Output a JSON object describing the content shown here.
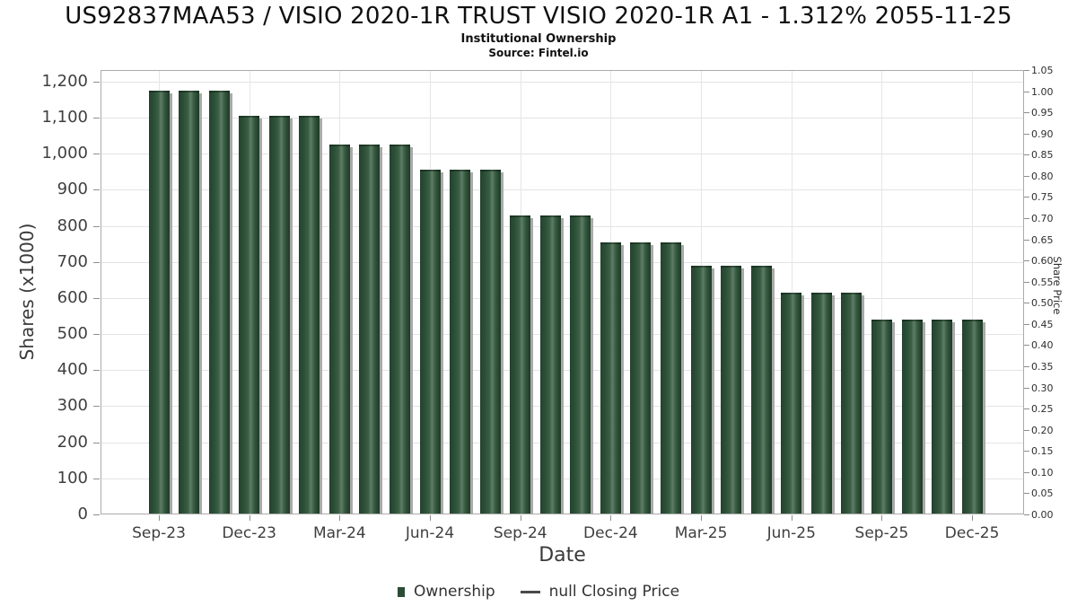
{
  "header": {
    "title": "US92837MAA53 / VISIO 2020-1R TRUST VISIO 2020-1R A1 - 1.312% 2055-11-25",
    "subtitle": "Institutional Ownership",
    "source": "Source: Fintel.io"
  },
  "chart_data": {
    "type": "bar",
    "title": "US92837MAA53 / VISIO 2020-1R TRUST VISIO 2020-1R A1 - 1.312% 2055-11-25",
    "subtitle": "Institutional Ownership",
    "source": "Source: Fintel.io",
    "xlabel": "Date",
    "ylabel": "Shares (x1000)",
    "ylabel_right": "Share Price",
    "x": [
      "Sep-23",
      "Oct-23",
      "Nov-23",
      "Dec-23",
      "Jan-24",
      "Feb-24",
      "Mar-24",
      "Apr-24",
      "May-24",
      "Jun-24",
      "Jul-24",
      "Aug-24",
      "Sep-24",
      "Oct-24",
      "Nov-24",
      "Dec-24",
      "Jan-25",
      "Feb-25",
      "Mar-25",
      "Apr-25",
      "May-25",
      "Jun-25",
      "Jul-25",
      "Aug-25",
      "Sep-25",
      "Oct-25",
      "Nov-25",
      "Dec-25"
    ],
    "series": [
      {
        "name": "Ownership",
        "values": [
          1175,
          1175,
          1175,
          1105,
          1105,
          1105,
          1025,
          1025,
          1025,
          955,
          955,
          955,
          830,
          830,
          830,
          755,
          755,
          755,
          690,
          690,
          690,
          615,
          615,
          615,
          540,
          540,
          540,
          540
        ]
      },
      {
        "name": "null Closing Price",
        "values": null
      }
    ],
    "ylim": [
      0,
      1232
    ],
    "yticks": [
      0,
      100,
      200,
      300,
      400,
      500,
      600,
      700,
      800,
      900,
      1000,
      1100,
      1200
    ],
    "ytick_labels": [
      "0",
      "100",
      "200",
      "300",
      "400",
      "500",
      "600",
      "700",
      "800",
      "900",
      "1,000",
      "1,100",
      "1,200"
    ],
    "ylim_right": [
      0,
      1.05
    ],
    "ytick_labels_right": [
      "0.00",
      "0.05",
      "0.10",
      "0.15",
      "0.20",
      "0.25",
      "0.30",
      "0.35",
      "0.40",
      "0.45",
      "0.50",
      "0.55",
      "0.60",
      "0.65",
      "0.70",
      "0.75",
      "0.80",
      "0.85",
      "0.90",
      "0.95",
      "1.00",
      "1.05"
    ],
    "xticks": [
      {
        "label": "Sep-23",
        "month": 0
      },
      {
        "label": "Dec-23",
        "month": 3
      },
      {
        "label": "Mar-24",
        "month": 6
      },
      {
        "label": "Jun-24",
        "month": 9
      },
      {
        "label": "Sep-24",
        "month": 12
      },
      {
        "label": "Dec-24",
        "month": 15
      },
      {
        "label": "Mar-25",
        "month": 18
      },
      {
        "label": "Jun-25",
        "month": 21
      },
      {
        "label": "Sep-25",
        "month": 24
      },
      {
        "label": "Dec-25",
        "month": 27
      }
    ],
    "grid": true,
    "legend_position": "bottom",
    "colors": {
      "bar": "#2d5037",
      "bar_edge": "#1d3926",
      "bar_highlight": "#5f7d67",
      "bar_shadow": "#a9a9a9",
      "grid": "#e4e4e4",
      "axis_border": "#ababab",
      "tick": "#8f8f8f",
      "text": "#3f3f3f"
    }
  },
  "legend": {
    "items": [
      {
        "label": "Ownership",
        "marker": "square"
      },
      {
        "label": "null Closing Price",
        "marker": "line"
      }
    ]
  }
}
